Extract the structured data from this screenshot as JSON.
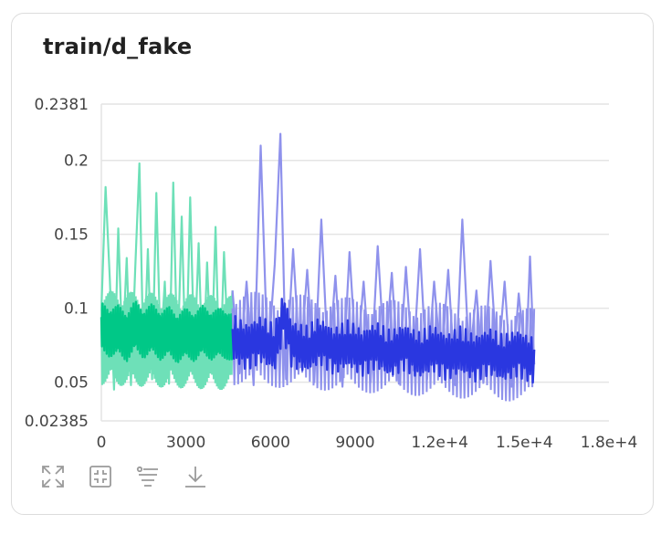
{
  "card": {
    "title": "train/d_fake"
  },
  "toolbar": [
    {
      "name": "fullscreen-icon"
    },
    {
      "name": "fit-domain-icon"
    },
    {
      "name": "filter-icon"
    },
    {
      "name": "download-icon"
    }
  ],
  "chart_data": {
    "type": "line",
    "title": "train/d_fake",
    "xlabel": "",
    "ylabel": "",
    "xlim": [
      0,
      18000
    ],
    "ylim": [
      0.02385,
      0.2381
    ],
    "x_ticks": [
      "0",
      "3000",
      "6000",
      "9000",
      "1.2e+4",
      "1.5e+4",
      "1.8e+4"
    ],
    "y_ticks": [
      "0.02385",
      "0.05",
      "0.1",
      "0.15",
      "0.2",
      "0.2381"
    ],
    "grid": true,
    "series": [
      {
        "color_raw": "#6ee0b8",
        "color_smoothed": "#00c887",
        "x_range": [
          0,
          4650
        ],
        "points": [
          [
            0,
            0.098
          ],
          [
            150,
            0.182
          ],
          [
            300,
            0.12
          ],
          [
            450,
            0.045
          ],
          [
            600,
            0.154
          ],
          [
            750,
            0.069
          ],
          [
            900,
            0.134
          ],
          [
            1050,
            0.048
          ],
          [
            1200,
            0.126
          ],
          [
            1350,
            0.198
          ],
          [
            1500,
            0.058
          ],
          [
            1650,
            0.14
          ],
          [
            1800,
            0.052
          ],
          [
            1950,
            0.178
          ],
          [
            2100,
            0.07
          ],
          [
            2250,
            0.118
          ],
          [
            2400,
            0.049
          ],
          [
            2550,
            0.185
          ],
          [
            2700,
            0.062
          ],
          [
            2850,
            0.162
          ],
          [
            3000,
            0.054
          ],
          [
            3150,
            0.175
          ],
          [
            3300,
            0.066
          ],
          [
            3450,
            0.144
          ],
          [
            3600,
            0.052
          ],
          [
            3750,
            0.131
          ],
          [
            3900,
            0.06
          ],
          [
            4050,
            0.155
          ],
          [
            4200,
            0.048
          ],
          [
            4350,
            0.138
          ],
          [
            4500,
            0.07
          ],
          [
            4650,
            0.112
          ]
        ],
        "smoothed": [
          [
            0,
            0.088
          ],
          [
            300,
            0.083
          ],
          [
            600,
            0.086
          ],
          [
            900,
            0.08
          ],
          [
            1200,
            0.089
          ],
          [
            1500,
            0.082
          ],
          [
            1800,
            0.087
          ],
          [
            2100,
            0.081
          ],
          [
            2400,
            0.085
          ],
          [
            2700,
            0.079
          ],
          [
            3000,
            0.084
          ],
          [
            3300,
            0.08
          ],
          [
            3600,
            0.086
          ],
          [
            3900,
            0.081
          ],
          [
            4200,
            0.084
          ],
          [
            4650,
            0.08
          ]
        ]
      },
      {
        "color_raw": "#8f92ec",
        "color_smoothed": "#2a37e0",
        "x_range": [
          4650,
          15350
        ],
        "points": [
          [
            4650,
            0.112
          ],
          [
            4900,
            0.056
          ],
          [
            5150,
            0.118
          ],
          [
            5400,
            0.048
          ],
          [
            5650,
            0.21
          ],
          [
            5900,
            0.062
          ],
          [
            6150,
            0.13
          ],
          [
            6350,
            0.218
          ],
          [
            6550,
            0.052
          ],
          [
            6800,
            0.14
          ],
          [
            7050,
            0.06
          ],
          [
            7300,
            0.126
          ],
          [
            7550,
            0.05
          ],
          [
            7800,
            0.16
          ],
          [
            8050,
            0.058
          ],
          [
            8300,
            0.122
          ],
          [
            8550,
            0.047
          ],
          [
            8800,
            0.138
          ],
          [
            9050,
            0.06
          ],
          [
            9300,
            0.118
          ],
          [
            9550,
            0.05
          ],
          [
            9800,
            0.142
          ],
          [
            10050,
            0.063
          ],
          [
            10300,
            0.124
          ],
          [
            10550,
            0.049
          ],
          [
            10800,
            0.128
          ],
          [
            11050,
            0.058
          ],
          [
            11300,
            0.14
          ],
          [
            11550,
            0.052
          ],
          [
            11800,
            0.118
          ],
          [
            12050,
            0.06
          ],
          [
            12300,
            0.126
          ],
          [
            12550,
            0.048
          ],
          [
            12800,
            0.16
          ],
          [
            13050,
            0.062
          ],
          [
            13300,
            0.112
          ],
          [
            13550,
            0.05
          ],
          [
            13800,
            0.132
          ],
          [
            14050,
            0.058
          ],
          [
            14300,
            0.118
          ],
          [
            14550,
            0.047
          ],
          [
            14800,
            0.11
          ],
          [
            15050,
            0.06
          ],
          [
            15200,
            0.135
          ],
          [
            15350,
            0.062
          ]
        ],
        "smoothed": [
          [
            4650,
            0.08
          ],
          [
            5150,
            0.074
          ],
          [
            5650,
            0.079
          ],
          [
            6150,
            0.073
          ],
          [
            6450,
            0.095
          ],
          [
            6750,
            0.076
          ],
          [
            7250,
            0.072
          ],
          [
            7750,
            0.078
          ],
          [
            8250,
            0.071
          ],
          [
            8750,
            0.076
          ],
          [
            9250,
            0.07
          ],
          [
            9750,
            0.075
          ],
          [
            10250,
            0.069
          ],
          [
            10750,
            0.074
          ],
          [
            11250,
            0.068
          ],
          [
            11750,
            0.073
          ],
          [
            12250,
            0.067
          ],
          [
            12750,
            0.072
          ],
          [
            13250,
            0.066
          ],
          [
            13750,
            0.071
          ],
          [
            14250,
            0.066
          ],
          [
            14750,
            0.07
          ],
          [
            15350,
            0.064
          ]
        ]
      }
    ]
  }
}
